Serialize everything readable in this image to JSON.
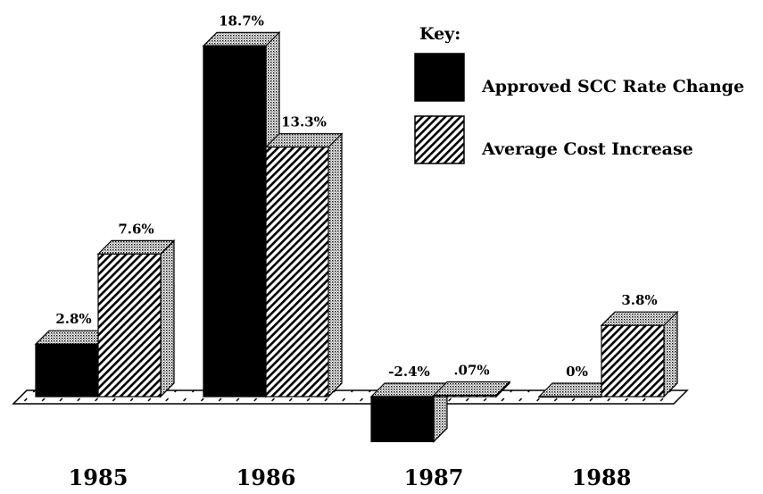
{
  "chart_data": {
    "type": "bar3d",
    "legend_title": "Key:",
    "categories": [
      "1985",
      "1986",
      "1987",
      "1988"
    ],
    "series": [
      {
        "name": "Approved SCC Rate Change",
        "values": [
          2.8,
          18.7,
          -2.4,
          0
        ],
        "value_labels": [
          "2.8%",
          "18.7%",
          "-2.4%",
          "0%"
        ]
      },
      {
        "name": "Average Cost Increase",
        "values": [
          7.6,
          13.3,
          0.07,
          3.8
        ],
        "value_labels": [
          "7.6%",
          "13.3%",
          ".07%",
          "3.8%"
        ]
      }
    ]
  }
}
